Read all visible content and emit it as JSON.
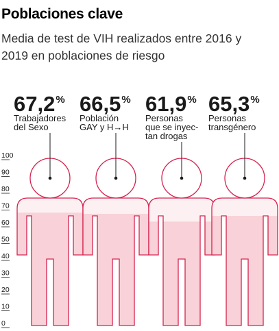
{
  "header": {
    "title": "Poblaciones clave",
    "subtitle_line1": "Media de test de VIH realizados entre 2016 y",
    "subtitle_line2": "2019 en poblaciones de riesgo"
  },
  "colors": {
    "accent": "#d6224f",
    "fill": "#f8d2d8",
    "fill_light": "#fdf0f2",
    "text": "#1a1a1a"
  },
  "chart_data": {
    "type": "bar",
    "categories": [
      "Trabajadores del Sexo",
      "Población GAY y H→H",
      "Personas que se inyectan drogas",
      "Personas transgénero"
    ],
    "values": [
      67.2,
      66.5,
      61.9,
      65.3
    ],
    "value_labels": [
      {
        "number": "67,2",
        "unit": "%"
      },
      {
        "number": "66,5",
        "unit": "%"
      },
      {
        "number": "61,9",
        "unit": "%"
      },
      {
        "number": "65,3",
        "unit": "%"
      }
    ],
    "category_lines": [
      [
        "Trabajadores",
        "del Sexo"
      ],
      [
        "Población",
        "GAY y H→H"
      ],
      [
        "Personas",
        "que se inyec-",
        "tan drogas"
      ],
      [
        "Personas",
        "transgénero"
      ]
    ],
    "title": "Poblaciones clave",
    "subtitle": "Media de test de VIH realizados entre 2016 y 2019 en poblaciones de riesgo",
    "ylim": [
      0,
      100
    ],
    "yticks": [
      "0",
      "10",
      "20",
      "30",
      "40",
      "50",
      "60",
      "70",
      "80",
      "90",
      "100"
    ],
    "grid": false,
    "legend": "none"
  }
}
